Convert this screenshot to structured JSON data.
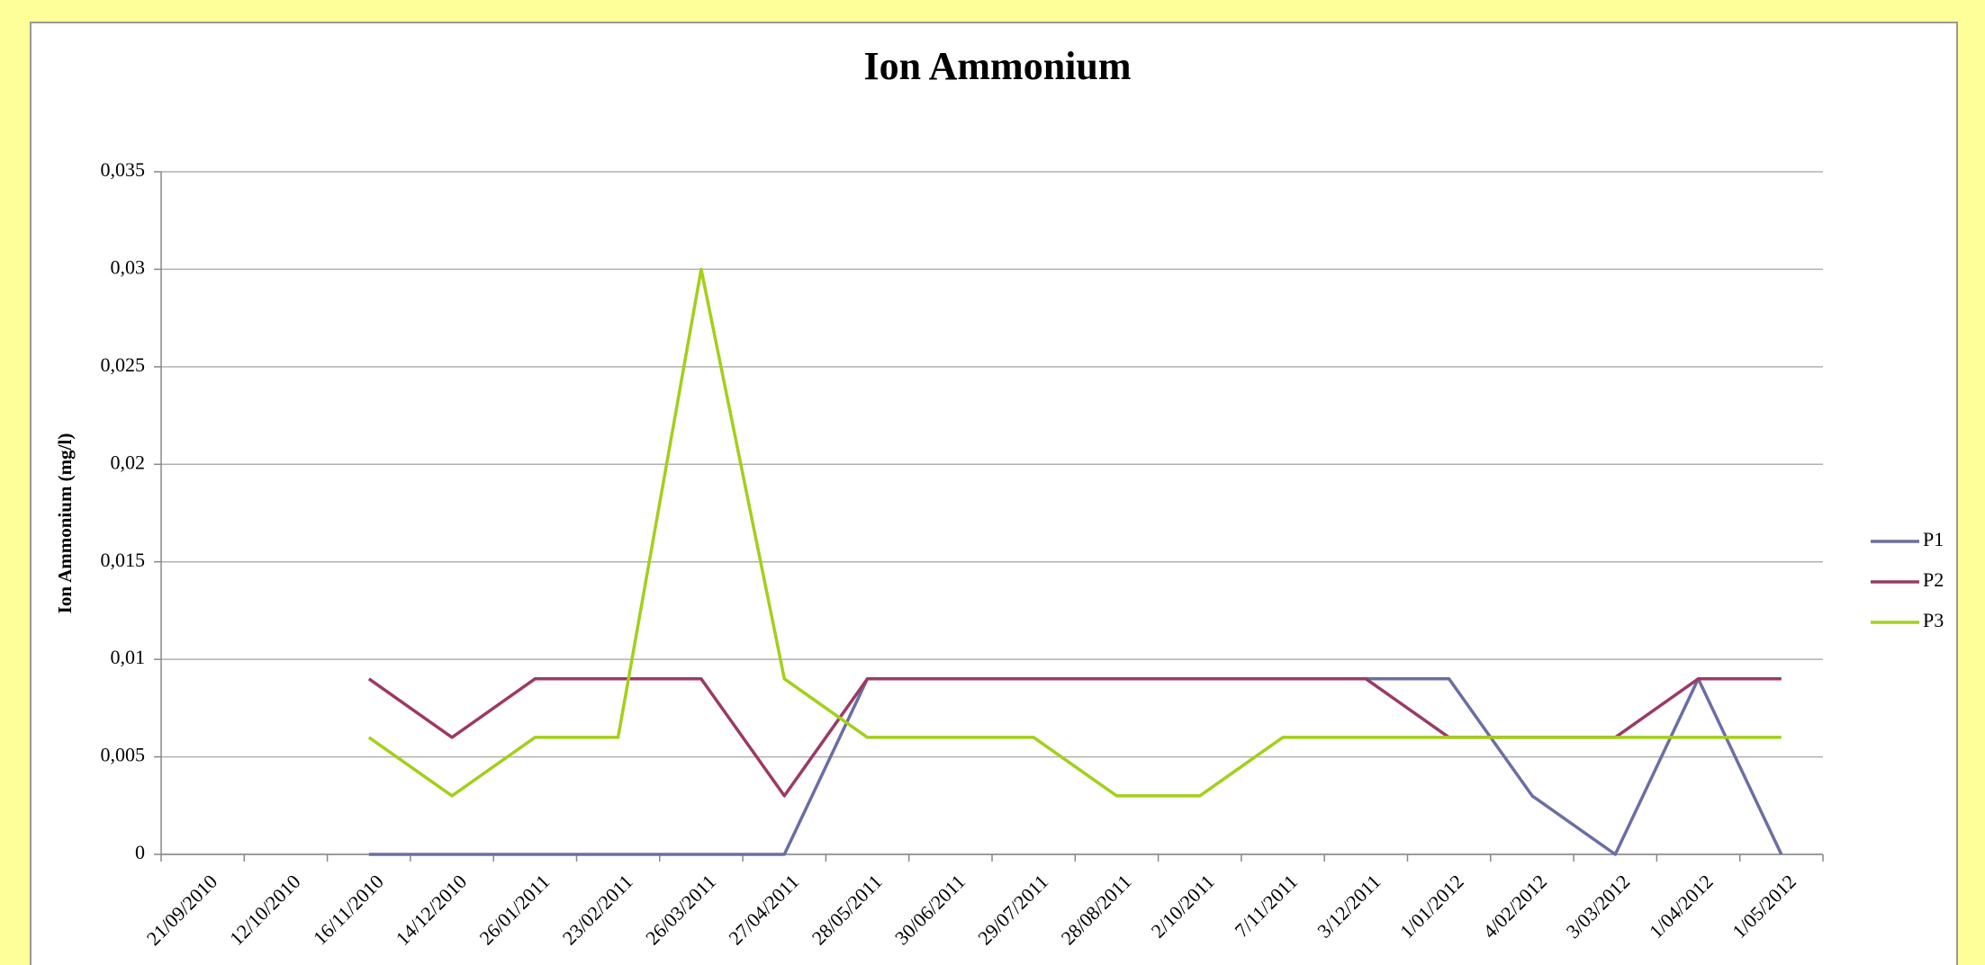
{
  "chart_data": {
    "type": "line",
    "title": "Ion Ammonium",
    "y_label": "Ion Ammonium (mg/l)",
    "categories": [
      "21/09/2010",
      "12/10/2010",
      "16/11/2010",
      "14/12/2010",
      "26/01/2011",
      "23/02/2011",
      "26/03/2011",
      "27/04/2011",
      "28/05/2011",
      "30/06/2011",
      "29/07/2011",
      "28/08/2011",
      "2/10/2011",
      "7/11/2011",
      "3/12/2011",
      "1/01/2012",
      "4/02/2012",
      "3/03/2012",
      "1/04/2012",
      "1/05/2012"
    ],
    "series": [
      {
        "name": "P1",
        "color": "#6b6ea3",
        "values": [
          null,
          null,
          0,
          0,
          0,
          0,
          0,
          0,
          0.009,
          0.009,
          0.009,
          0.009,
          0.009,
          0.009,
          0.009,
          0.009,
          0.003,
          0,
          0.009,
          0
        ]
      },
      {
        "name": "P2",
        "color": "#9b3a65",
        "values": [
          null,
          null,
          0.009,
          0.006,
          0.009,
          0.009,
          0.009,
          0.003,
          0.009,
          0.009,
          0.009,
          0.009,
          0.009,
          0.009,
          0.009,
          0.006,
          0.006,
          0.006,
          0.009,
          0.009
        ]
      },
      {
        "name": "P3",
        "color": "#a3cf1a",
        "values": [
          null,
          null,
          0.006,
          0.003,
          0.006,
          0.006,
          0.03,
          0.009,
          0.006,
          0.006,
          0.006,
          0.003,
          0.003,
          0.006,
          0.006,
          0.006,
          0.006,
          0.006,
          0.006,
          0.006
        ]
      }
    ],
    "ylim": [
      0,
      0.035
    ],
    "yticks": [
      0,
      {
        "value": 0.005,
        "label": "0,005"
      },
      {
        "value": 0.01,
        "label": "0,01"
      },
      {
        "value": 0.015,
        "label": "0,015"
      },
      {
        "value": 0.02,
        "label": "0,02"
      },
      {
        "value": 0.025,
        "label": "0,025"
      },
      {
        "value": 0.03,
        "label": "0,03"
      },
      {
        "value": 0.035,
        "label": "0,035"
      }
    ],
    "grid": true,
    "legend": "right"
  }
}
